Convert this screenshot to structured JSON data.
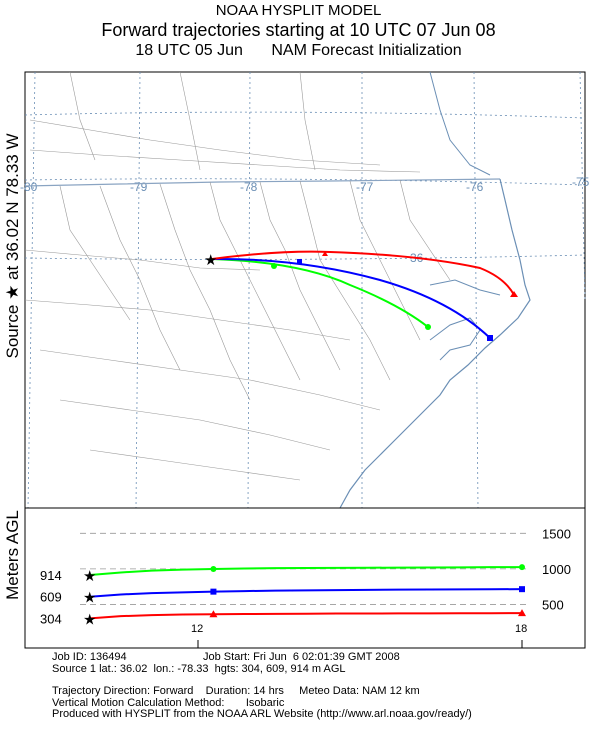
{
  "header": {
    "line1": "NOAA HYSPLIT MODEL",
    "line2": "Forward trajectories starting at 10 UTC 07 Jun 08",
    "line3_a": "18 UTC 05 Jun",
    "line3_b": "NAM  Forecast Initialization"
  },
  "side_label": {
    "text": "Source ★ at   36.02 N   78.33 W",
    "height_axis": "Meters AGL"
  },
  "map": {
    "lon_labels": [
      "-80",
      "-79",
      "-78",
      "-77",
      "-76",
      "-75"
    ],
    "lat_labels": [
      "36"
    ],
    "border_color": "#000000",
    "state_line_color": "#999999",
    "grid_color": "#6b8fb5",
    "source": {
      "lat": 36.02,
      "lon": -78.33
    }
  },
  "chart_data": {
    "type": "line",
    "x_label": "",
    "x_ticks": [
      "12",
      "18"
    ],
    "y_ticks": [
      "1500",
      "1000",
      "500"
    ],
    "y_range": [
      0,
      1800
    ],
    "x_range_hours": [
      10,
      24
    ],
    "series": [
      {
        "name": "914",
        "color": "#00ff00",
        "marker": "circle",
        "heights": [
          914,
          950,
          975,
          990,
          998,
          1005,
          1010,
          1012,
          1014,
          1016,
          1018,
          1020,
          1022,
          1024,
          1025
        ]
      },
      {
        "name": "609",
        "color": "#0000ff",
        "marker": "square",
        "heights": [
          609,
          640,
          660,
          670,
          680,
          688,
          694,
          698,
          702,
          705,
          708,
          710,
          712,
          714,
          715
        ]
      },
      {
        "name": "304",
        "color": "#ff0000",
        "marker": "triangle",
        "heights": [
          304,
          335,
          350,
          358,
          362,
          365,
          368,
          370,
          372,
          373,
          374,
          375,
          376,
          377,
          378
        ]
      }
    ],
    "start_labels": [
      "914",
      "609",
      "304"
    ]
  },
  "footer": {
    "line1": "Job ID: 136494                         Job Start: Fri Jun  6 02:01:39 GMT 2008",
    "line2": "Source 1 lat.: 36.02  lon.: -78.33  hgts: 304, 609, 914 m AGL",
    "line3": "Trajectory Direction: Forward    Duration: 14 hrs     Meteo Data: NAM 12 km",
    "line4": "Vertical Motion Calculation Method:       Isobaric",
    "line5": "Produced with HYSPLIT from the NOAA ARL Website (http://www.arl.noaa.gov/ready/)"
  }
}
